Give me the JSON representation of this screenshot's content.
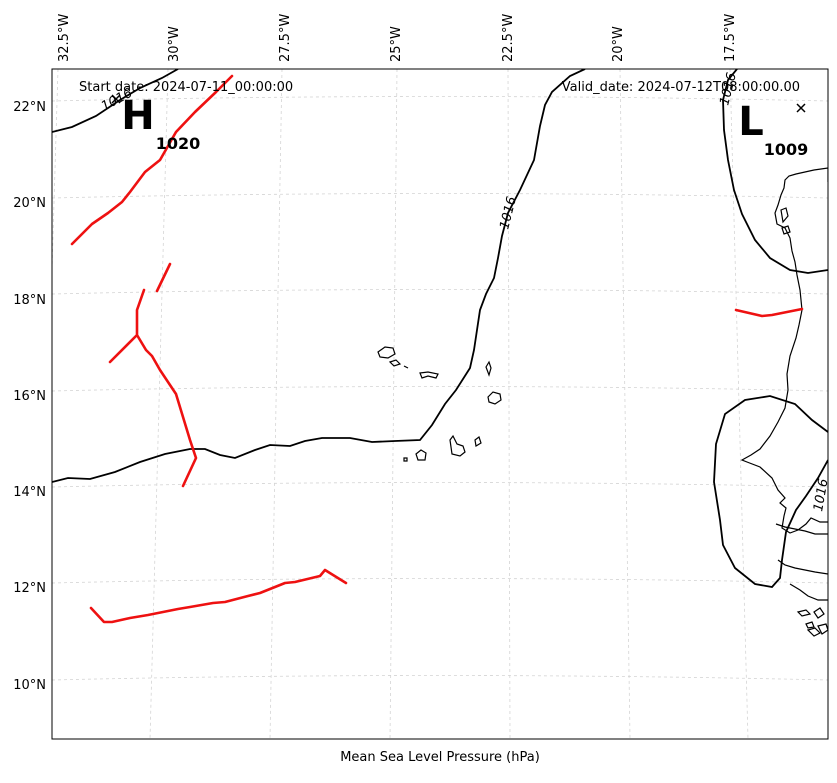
{
  "header": {
    "start_date": "Start date: 2024-07-11_00:00:00",
    "valid_date": "Valid_date: 2024-07-12T08:00:00.00"
  },
  "caption": "Mean Sea Level Pressure (hPa)",
  "axes": {
    "longitude_labels": [
      "32.5°W",
      "30°W",
      "27.5°W",
      "25°W",
      "22.5°W",
      "20°W",
      "17.5°W"
    ],
    "latitude_labels": [
      "22°N",
      "20°N",
      "18°N",
      "16°N",
      "14°N",
      "12°N",
      "10°N"
    ]
  },
  "pressure_centers": [
    {
      "type": "H",
      "value": "1020"
    },
    {
      "type": "L",
      "value": "1009"
    }
  ],
  "contour_labels": [
    "1016",
    "1016",
    "1016",
    "1016"
  ],
  "colors": {
    "front": "#ee1111",
    "isobar": "#000000",
    "coastline": "#000000",
    "grid": "#d0d0d0"
  }
}
